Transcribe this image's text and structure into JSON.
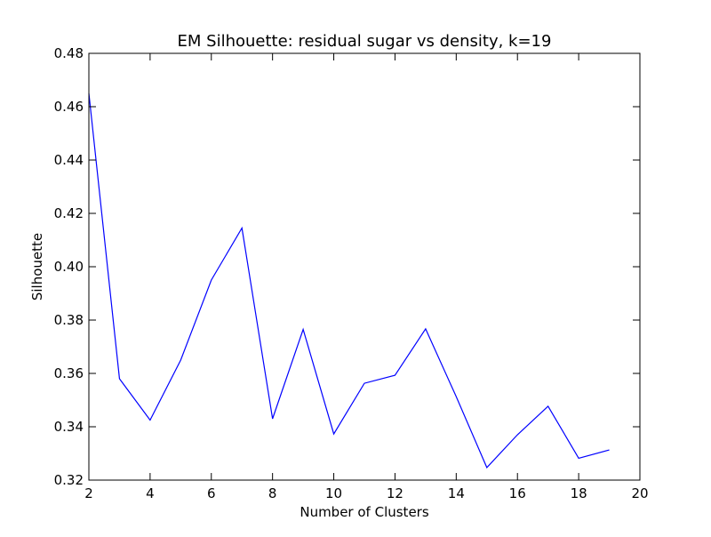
{
  "chart_data": {
    "type": "line",
    "title": "EM Silhouette: residual sugar vs density, k=19",
    "xlabel": "Number of Clusters",
    "ylabel": "Silhouette",
    "xlim": [
      2,
      20
    ],
    "ylim": [
      0.32,
      0.48
    ],
    "xticks": [
      2,
      4,
      6,
      8,
      10,
      12,
      14,
      16,
      18,
      20
    ],
    "yticks": [
      0.32,
      0.34,
      0.36,
      0.38,
      0.4,
      0.42,
      0.44,
      0.46,
      0.48
    ],
    "xtick_labels": [
      "2",
      "4",
      "6",
      "8",
      "10",
      "12",
      "14",
      "16",
      "18",
      "20"
    ],
    "ytick_labels": [
      "0.32",
      "0.34",
      "0.36",
      "0.38",
      "0.40",
      "0.42",
      "0.44",
      "0.46",
      "0.48"
    ],
    "grid": false,
    "series": [
      {
        "color": "#0000ff",
        "x": [
          2,
          3,
          4,
          5,
          6,
          7,
          8,
          9,
          10,
          11,
          12,
          13,
          14,
          15,
          16,
          17,
          18,
          19
        ],
        "y": [
          0.465,
          0.358,
          0.3425,
          0.365,
          0.395,
          0.4145,
          0.343,
          0.3765,
          0.3373,
          0.3563,
          0.3593,
          0.3767,
          0.3513,
          0.3247,
          0.337,
          0.3477,
          0.3282,
          0.3313
        ]
      }
    ]
  }
}
